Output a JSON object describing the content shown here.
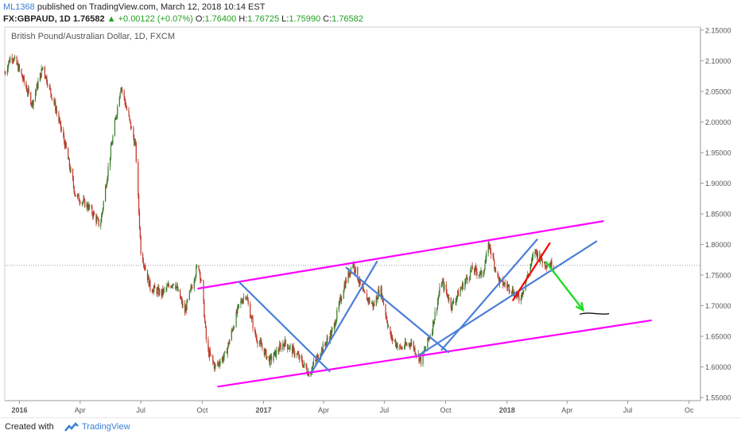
{
  "header": {
    "author": "ML1368",
    "published": "published on TradingView.com, March 12, 2018 10:14 EST",
    "symbol": "FX:GBPAUD, 1D",
    "last": "1.76582",
    "change": "+0.00122 (+0.07%)",
    "o_label": "O:",
    "o_value": "1.76400",
    "h_label": "H:",
    "h_value": "1.76725",
    "l_label": "L:",
    "l_value": "1.75990",
    "c_label": "C:",
    "c_value": "1.76582"
  },
  "footer": {
    "created_with": "Created with",
    "brand": "TradingView",
    "brand_icon": "tradingview-logo-icon"
  },
  "colors": {
    "candle_up": "#3a7a2a",
    "candle_down": "#c0392b",
    "magenta": "#ff00ff",
    "blue": "#4a7fd8",
    "red": "#ff0000",
    "green": "#22dd22"
  },
  "chart_data": {
    "type": "candlestick",
    "title": "British Pound/Australian Dollar, 1D, FXCM",
    "x_ticks": [
      "2016",
      "Apr",
      "Jul",
      "Oct",
      "2017",
      "Apr",
      "Jul",
      "Oct",
      "2018",
      "Apr",
      "Jul",
      "Oc"
    ],
    "x_tick_dates": [
      "2016-01-01",
      "2016-04-01",
      "2016-07-01",
      "2016-10-01",
      "2017-01-01",
      "2017-04-01",
      "2017-07-01",
      "2017-10-01",
      "2018-01-01",
      "2018-04-01",
      "2018-07-01",
      "2018-10-01"
    ],
    "x_range": [
      "2015-12-10",
      "2018-10-18"
    ],
    "y_range": [
      1.545,
      2.155
    ],
    "y_ticks": [
      "2.15000",
      "2.10000",
      "2.05000",
      "2.00000",
      "1.95000",
      "1.90000",
      "1.85000",
      "1.80000",
      "1.75000",
      "1.70000",
      "1.65000",
      "1.60000",
      "1.55000"
    ],
    "last_price": 1.76582,
    "grid": false,
    "price_path": [
      [
        "2015-12-10",
        2.08
      ],
      [
        "2015-12-20",
        2.11
      ],
      [
        "2016-01-01",
        2.085
      ],
      [
        "2016-01-20",
        2.03
      ],
      [
        "2016-02-05",
        2.09
      ],
      [
        "2016-02-25",
        2.02
      ],
      [
        "2016-03-10",
        1.96
      ],
      [
        "2016-03-25",
        1.88
      ],
      [
        "2016-04-15",
        1.86
      ],
      [
        "2016-05-01",
        1.83
      ],
      [
        "2016-05-15",
        1.94
      ],
      [
        "2016-06-01",
        2.06
      ],
      [
        "2016-06-10",
        2.02
      ],
      [
        "2016-06-23",
        1.96
      ],
      [
        "2016-07-01",
        1.79
      ],
      [
        "2016-07-15",
        1.73
      ],
      [
        "2016-08-01",
        1.72
      ],
      [
        "2016-08-20",
        1.74
      ],
      [
        "2016-09-05",
        1.69
      ],
      [
        "2016-09-25",
        1.77
      ],
      [
        "2016-10-01",
        1.73
      ],
      [
        "2016-10-08",
        1.63
      ],
      [
        "2016-10-20",
        1.6
      ],
      [
        "2016-11-05",
        1.62
      ],
      [
        "2016-11-25",
        1.7
      ],
      [
        "2016-12-05",
        1.72
      ],
      [
        "2016-12-20",
        1.65
      ],
      [
        "2017-01-10",
        1.61
      ],
      [
        "2017-02-01",
        1.64
      ],
      [
        "2017-02-20",
        1.62
      ],
      [
        "2017-03-10",
        1.59
      ],
      [
        "2017-03-25",
        1.62
      ],
      [
        "2017-04-15",
        1.66
      ],
      [
        "2017-05-01",
        1.73
      ],
      [
        "2017-05-15",
        1.77
      ],
      [
        "2017-05-30",
        1.72
      ],
      [
        "2017-06-15",
        1.7
      ],
      [
        "2017-06-25",
        1.73
      ],
      [
        "2017-07-10",
        1.65
      ],
      [
        "2017-07-25",
        1.63
      ],
      [
        "2017-08-10",
        1.64
      ],
      [
        "2017-08-25",
        1.61
      ],
      [
        "2017-09-10",
        1.66
      ],
      [
        "2017-09-25",
        1.74
      ],
      [
        "2017-10-10",
        1.7
      ],
      [
        "2017-10-25",
        1.73
      ],
      [
        "2017-11-10",
        1.76
      ],
      [
        "2017-11-25",
        1.75
      ],
      [
        "2017-12-05",
        1.8
      ],
      [
        "2017-12-20",
        1.74
      ],
      [
        "2018-01-05",
        1.73
      ],
      [
        "2018-01-20",
        1.71
      ],
      [
        "2018-02-01",
        1.75
      ],
      [
        "2018-02-12",
        1.79
      ],
      [
        "2018-02-25",
        1.77
      ],
      [
        "2018-03-12",
        1.76582
      ]
    ],
    "drawings": [
      {
        "color": "magenta",
        "from": [
          "2016-09-25",
          1.728
        ],
        "to": [
          "2018-05-25",
          1.838
        ]
      },
      {
        "color": "magenta",
        "from": [
          "2016-10-25",
          1.568
        ],
        "to": [
          "2018-08-05",
          1.676
        ]
      },
      {
        "color": "blue",
        "from": [
          "2016-11-25",
          1.739
        ],
        "to": [
          "2017-04-10",
          1.593
        ]
      },
      {
        "color": "blue",
        "from": [
          "2017-03-15",
          1.593
        ],
        "to": [
          "2017-06-20",
          1.772
        ]
      },
      {
        "color": "blue",
        "from": [
          "2017-05-05",
          1.762
        ],
        "to": [
          "2017-10-05",
          1.624
        ]
      },
      {
        "color": "blue",
        "from": [
          "2017-08-20",
          1.618
        ],
        "to": [
          "2018-05-15",
          1.805
        ]
      },
      {
        "color": "blue",
        "from": [
          "2017-09-25",
          1.628
        ],
        "to": [
          "2018-02-15",
          1.808
        ]
      },
      {
        "color": "red",
        "from": [
          "2018-01-10",
          1.709
        ],
        "to": [
          "2018-03-06",
          1.802
        ]
      }
    ],
    "arrow": {
      "color": "green",
      "from": [
        "2018-02-28",
        1.772
      ],
      "to": [
        "2018-04-25",
        1.693
      ]
    },
    "squiggle": [
      [
        "2018-04-20",
        1.686
      ],
      [
        "2018-05-05",
        1.691
      ],
      [
        "2018-05-20",
        1.684
      ],
      [
        "2018-06-03",
        1.687
      ]
    ]
  }
}
